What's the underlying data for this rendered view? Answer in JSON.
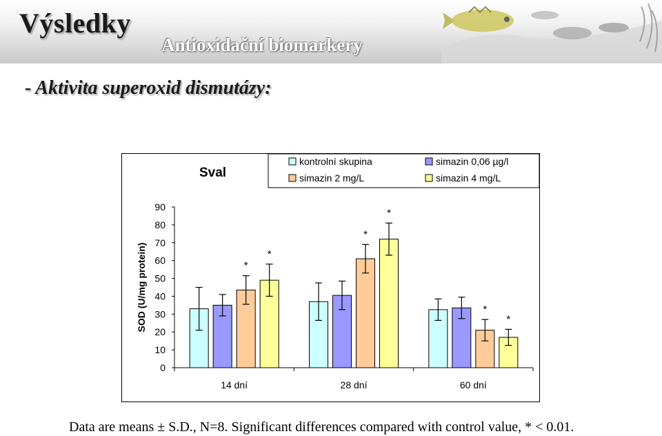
{
  "slide": {
    "title": "Výsledky",
    "subtitle": "Antioxidační biomarkery",
    "section_heading": "- Aktivita superoxid dismutázy:",
    "footnote": "Data are means ± S.D., N=8. Significant differences compared with control value, * < 0.01."
  },
  "colors": {
    "kontrolni": "#ccffff",
    "simazin_006": "#9999ff",
    "simazin_2": "#ffcc99",
    "simazin_4": "#ffff99"
  },
  "chart_data": {
    "type": "bar",
    "title": "Sval",
    "ylabel": "SOD (U/mg protein)",
    "xlabel": "",
    "categories": [
      "14 dní",
      "28 dní",
      "60 dní"
    ],
    "ylim": [
      0,
      90
    ],
    "yticks": [
      "0",
      "10",
      "20",
      "30",
      "40",
      "50",
      "60",
      "70",
      "80",
      "90"
    ],
    "legend_position": "top",
    "series": [
      {
        "name": "kontrolní skupina",
        "color": "#ccffff",
        "values": [
          33,
          37,
          32.5
        ],
        "errors": [
          12,
          10.5,
          6
        ],
        "significant": [
          false,
          false,
          false
        ]
      },
      {
        "name": "simazin 0,06 µg/l",
        "color": "#9999ff",
        "values": [
          35,
          40.5,
          33.5
        ],
        "errors": [
          6,
          8,
          6
        ],
        "significant": [
          false,
          false,
          false
        ]
      },
      {
        "name": "simazin 2 mg/L",
        "color": "#ffcc99",
        "values": [
          43.5,
          61,
          21
        ],
        "errors": [
          8,
          8,
          6
        ],
        "significant": [
          true,
          true,
          true
        ]
      },
      {
        "name": "simazin 4 mg/L",
        "color": "#ffff99",
        "values": [
          49,
          72,
          17
        ],
        "errors": [
          9,
          9,
          4.5
        ],
        "significant": [
          true,
          true,
          true
        ]
      }
    ],
    "significance_marker": "*"
  }
}
